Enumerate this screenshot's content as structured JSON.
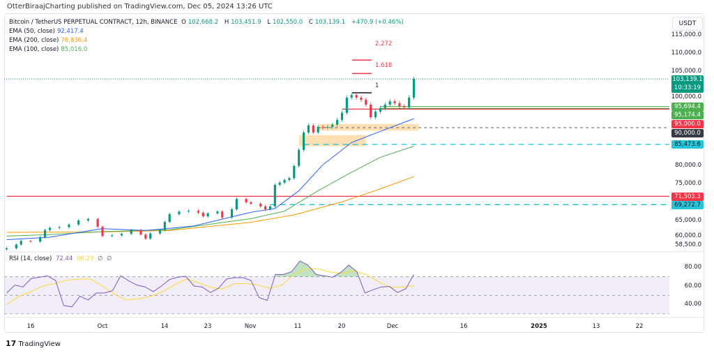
{
  "publisher_line": "OtterBiraajCharting published on TradingView.com, Dec 05, 2024 13:26 UTC",
  "legend": {
    "symbol": "Bitcoin / TetherUS PERPETUAL CONTRACT, 12h, BINANCE",
    "o_label": "O",
    "o": "102,668.2",
    "h_label": "H",
    "h": "103,451.9",
    "l_label": "L",
    "l": "102,550.0",
    "c_label": "C",
    "c": "103,139.1",
    "change": "+470.9 (+0.46%)",
    "ema50_label": "EMA (50, close)",
    "ema50": "92,417.4",
    "ema200_label": "EMA (200, close)",
    "ema200": "76,836.4",
    "ema100_label": "EMA (100, close)",
    "ema100": "85,016.0"
  },
  "rsi_legend": {
    "label": "RSI (14, close)",
    "rsi": "72.44",
    "ma": "60.29",
    "v3": "∅",
    "v4": "∅"
  },
  "currency": "USDT",
  "price_axis": [
    "115,000.0",
    "110,000.0",
    "105,000.0",
    "100,000.0",
    "80,000.0",
    "75,000.0",
    "65,000.0",
    "60,000.0",
    "58,500.0"
  ],
  "rsi_axis": [
    "80.00",
    "60.00",
    "40.00"
  ],
  "price_labels": {
    "current": "103,139.1",
    "countdown": "10:33:19",
    "l1": "95,694.4",
    "l2": "95,174.4",
    "l3": "95,000.0",
    "l4": "90,000.0",
    "l5": "85,473.6",
    "l6": "71,503.3",
    "l7": "69,272.7"
  },
  "fib": {
    "f1": "1",
    "f1618": "1.618",
    "f2272": "2.272"
  },
  "time_axis": [
    "16",
    "Oct",
    "14",
    "23",
    "Nov",
    "11",
    "20",
    "Dec",
    "16",
    "2025",
    "13",
    "22"
  ],
  "footer": {
    "logo_text": "TradingView"
  },
  "colors": {
    "up": "#089981",
    "down": "#f23645",
    "ema50": "#2962ff",
    "ema100": "#4caf50",
    "ema200": "#ff9800",
    "rsi": "#7e57c2",
    "rsi_ma": "#fdd835",
    "cyan": "#00bcd4"
  },
  "chart_data": {
    "type": "candlestick",
    "symbol": "BTCUSDT.P",
    "interval": "12h",
    "ylim": [
      57000,
      117000
    ],
    "closes": [
      [
        "2024-09-11",
        57500
      ],
      [
        "2024-09-13",
        58500
      ],
      [
        "2024-09-14",
        59500
      ],
      [
        "2024-09-16",
        59300
      ],
      [
        "2024-09-18",
        60500
      ],
      [
        "2024-09-19",
        62400
      ],
      [
        "2024-09-20",
        63000
      ],
      [
        "2024-09-22",
        63200
      ],
      [
        "2024-09-24",
        63900
      ],
      [
        "2024-09-26",
        65000
      ],
      [
        "2024-09-28",
        65400
      ],
      [
        "2024-09-30",
        63300
      ],
      [
        "2024-10-01",
        60800
      ],
      [
        "2024-10-03",
        61000
      ],
      [
        "2024-10-05",
        61400
      ],
      [
        "2024-10-07",
        62400
      ],
      [
        "2024-10-09",
        61200
      ],
      [
        "2024-10-10",
        60100
      ],
      [
        "2024-10-11",
        61500
      ],
      [
        "2024-10-13",
        62400
      ],
      [
        "2024-10-14",
        64600
      ],
      [
        "2024-10-15",
        66700
      ],
      [
        "2024-10-17",
        67400
      ],
      [
        "2024-10-19",
        67600
      ],
      [
        "2024-10-21",
        67100
      ],
      [
        "2024-10-22",
        66100
      ],
      [
        "2024-10-23",
        66900
      ],
      [
        "2024-10-25",
        67400
      ],
      [
        "2024-10-26",
        65800
      ],
      [
        "2024-10-28",
        68000
      ],
      [
        "2024-10-29",
        70800
      ],
      [
        "2024-10-31",
        69900
      ],
      [
        "2024-11-01",
        69500
      ],
      [
        "2024-11-03",
        68800
      ],
      [
        "2024-11-04",
        68000
      ],
      [
        "2024-11-05",
        68800
      ],
      [
        "2024-11-06",
        74600
      ],
      [
        "2024-11-07",
        75200
      ],
      [
        "2024-11-08",
        75900
      ],
      [
        "2024-11-09",
        76400
      ],
      [
        "2024-11-10",
        79700
      ],
      [
        "2024-11-11",
        84000
      ],
      [
        "2024-11-12",
        88700
      ],
      [
        "2024-11-13",
        90600
      ],
      [
        "2024-11-14",
        88700
      ],
      [
        "2024-11-15",
        90200
      ],
      [
        "2024-11-16",
        90000
      ],
      [
        "2024-11-17",
        90200
      ],
      [
        "2024-11-18",
        90800
      ],
      [
        "2024-11-19",
        92100
      ],
      [
        "2024-11-20",
        94000
      ],
      [
        "2024-11-21",
        98100
      ],
      [
        "2024-11-22",
        98800
      ],
      [
        "2024-11-23",
        98100
      ],
      [
        "2024-11-24",
        97500
      ],
      [
        "2024-11-25",
        96200
      ],
      [
        "2024-11-26",
        92800
      ],
      [
        "2024-11-27",
        94300
      ],
      [
        "2024-11-28",
        95300
      ],
      [
        "2024-11-29",
        96200
      ],
      [
        "2024-11-30",
        97100
      ],
      [
        "2024-12-01",
        96600
      ],
      [
        "2024-12-02",
        95800
      ],
      [
        "2024-12-03",
        95500
      ],
      [
        "2024-12-04",
        98100
      ],
      [
        "2024-12-05",
        103139.1
      ]
    ],
    "ema50": [
      [
        "2024-09-11",
        59800
      ],
      [
        "2024-09-20",
        60500
      ],
      [
        "2024-10-01",
        62800
      ],
      [
        "2024-10-10",
        62300
      ],
      [
        "2024-10-20",
        63500
      ],
      [
        "2024-11-01",
        67200
      ],
      [
        "2024-11-06",
        68200
      ],
      [
        "2024-11-11",
        73000
      ],
      [
        "2024-11-16",
        80000
      ],
      [
        "2024-11-22",
        86000
      ],
      [
        "2024-11-28",
        89000
      ],
      [
        "2024-12-05",
        92417.4
      ]
    ],
    "ema100": [
      [
        "2024-09-11",
        60800
      ],
      [
        "2024-09-20",
        61200
      ],
      [
        "2024-10-01",
        62000
      ],
      [
        "2024-10-15",
        62500
      ],
      [
        "2024-11-01",
        65500
      ],
      [
        "2024-11-08",
        67500
      ],
      [
        "2024-11-15",
        73000
      ],
      [
        "2024-11-22",
        78000
      ],
      [
        "2024-11-28",
        82000
      ],
      [
        "2024-12-05",
        85016.0
      ]
    ],
    "ema200": [
      [
        "2024-09-11",
        61800
      ],
      [
        "2024-10-01",
        61900
      ],
      [
        "2024-10-15",
        62300
      ],
      [
        "2024-11-01",
        64500
      ],
      [
        "2024-11-10",
        66500
      ],
      [
        "2024-11-20",
        70000
      ],
      [
        "2024-11-28",
        73500
      ],
      [
        "2024-12-05",
        76836.4
      ]
    ],
    "horizontal_levels": [
      {
        "value": 95694.4,
        "color": "#4caf50",
        "style": "solid",
        "from": "2024-11-28"
      },
      {
        "value": 95174.4,
        "color": "#4caf50",
        "style": "solid",
        "from": "2024-11-28"
      },
      {
        "value": 95000,
        "color": "#f23645",
        "style": "solid",
        "from": "2024-11-20"
      },
      {
        "value": 90000,
        "color": "#787b86",
        "style": "dashed",
        "from": "2024-11-15"
      },
      {
        "value": 85473.6,
        "color": "#00bcd4",
        "style": "dashed",
        "from": "2024-11-12"
      },
      {
        "value": 71503.3,
        "color": "#f23645",
        "style": "solid",
        "from": "2024-09-11"
      },
      {
        "value": 69272.7,
        "color": "#00bcd4",
        "style": "dashed",
        "from": "2024-11-05"
      }
    ],
    "fib_levels": [
      {
        "label": "1",
        "value": 99400
      },
      {
        "label": "1.618",
        "value": 104600
      },
      {
        "label": "2.272",
        "value": 108200
      }
    ],
    "zones": [
      {
        "from": "2024-11-15",
        "to": "2024-12-06",
        "low": 89200,
        "high": 91000
      },
      {
        "from": "2024-11-11",
        "to": "2024-11-25",
        "low": 85000,
        "high": 88000
      }
    ],
    "rsi": {
      "period": 14,
      "range": [
        "2024-09-11",
        "2024-12-05"
      ],
      "ylim": [
        25,
        90
      ],
      "bands": [
        30,
        50,
        70
      ],
      "values": [
        52.5,
        61,
        59,
        68,
        69.5,
        71,
        66,
        39,
        37.5,
        49,
        45,
        52.5,
        52.5,
        55,
        71,
        65.5,
        61,
        59,
        54,
        60,
        67,
        69.5,
        70.5,
        60,
        59,
        53,
        57.5,
        67.5,
        69,
        69,
        66,
        47.5,
        44.5,
        72.5,
        72.5,
        75.5,
        87,
        82.5,
        72.5,
        71,
        69.5,
        74.5,
        82.5,
        75.5,
        52.5,
        56,
        59,
        59.5,
        53,
        57,
        72.44
      ],
      "ma_values": [
        40,
        48.75,
        53.75,
        60,
        62.5,
        66.25,
        67.5,
        67.5,
        60,
        51.25,
        45,
        46.25,
        48.75,
        53.75,
        61.25,
        67.5,
        63.75,
        58.75,
        56.75,
        62.5,
        62.5,
        61.25,
        57.5,
        61.25,
        72.5,
        78.75,
        78.75,
        75,
        73.75,
        76.25,
        72.5,
        65,
        58.75,
        58.75,
        60.29
      ]
    }
  }
}
